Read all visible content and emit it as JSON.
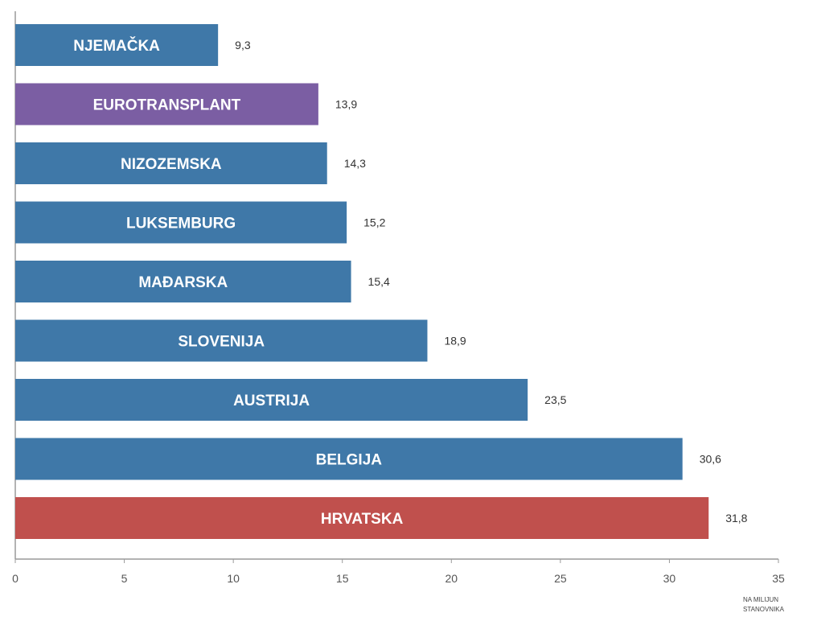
{
  "chart_data": {
    "type": "bar",
    "orientation": "horizontal",
    "categories": [
      "NJEMAČKA",
      "EUROTRANSPLANT",
      "NIZOZEMSKA",
      "LUKSEMBURG",
      "MAĐARSKA",
      "SLOVENIJA",
      "AUSTRIJA",
      "BELGIJA",
      "HRVATSKA"
    ],
    "values": [
      9.3,
      13.9,
      14.3,
      15.2,
      15.4,
      18.9,
      23.5,
      30.6,
      31.8
    ],
    "value_labels": [
      "9,3",
      "13,9",
      "14,3",
      "15,2",
      "15,4",
      "18,9",
      "23,5",
      "30,6",
      "31,8"
    ],
    "bar_colors": [
      "#3f78a8",
      "#7b5ea3",
      "#3f78a8",
      "#3f78a8",
      "#3f78a8",
      "#3f78a8",
      "#3f78a8",
      "#3f78a8",
      "#c0504d"
    ],
    "xlim": [
      0,
      35
    ],
    "xticks": [
      0,
      5,
      10,
      15,
      20,
      25,
      30,
      35
    ],
    "unit_label_lines": [
      "NA MILIJUN",
      "STANOVNIKA"
    ],
    "grid": false,
    "legend": false
  }
}
